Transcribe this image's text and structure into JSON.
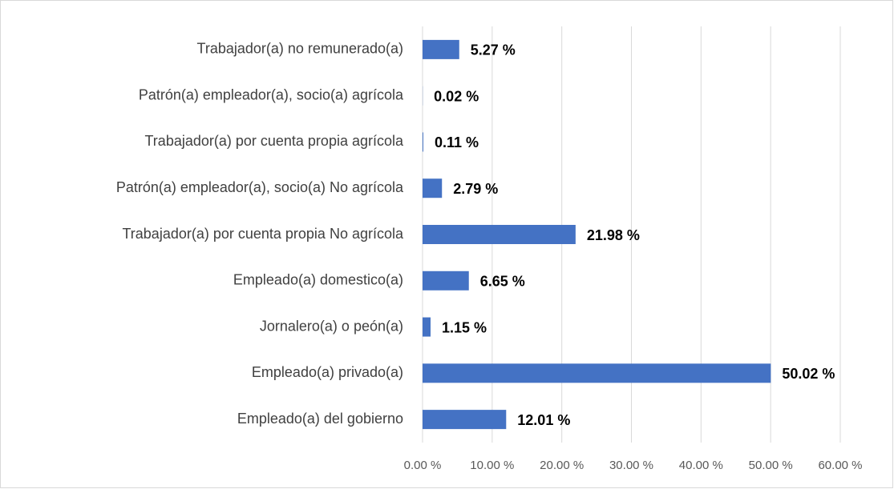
{
  "chart_data": {
    "type": "barh",
    "categories": [
      "Trabajador(a) no remunerado(a)",
      "Patrón(a) empleador(a), socio(a) agrícola",
      "Trabajador(a) por cuenta propia agrícola",
      "Patrón(a) empleador(a), socio(a) No agrícola",
      "Trabajador(a) por cuenta propia No agrícola",
      "Empleado(a) domestico(a)",
      "Jornalero(a) o peón(a)",
      "Empleado(a) privado(a)",
      "Empleado(a) del gobierno"
    ],
    "values": [
      5.27,
      0.02,
      0.11,
      2.79,
      21.98,
      6.65,
      1.15,
      50.02,
      12.01
    ],
    "value_labels": [
      "5.27 %",
      "0.02 %",
      "0.11 %",
      "2.79 %",
      "21.98 %",
      "6.65 %",
      "1.15 %",
      "50.02 %",
      "12.01 %"
    ],
    "color": "#4472c4",
    "xlim": [
      0,
      60
    ],
    "xticks": [
      {
        "value": 0,
        "label": "0.00 %"
      },
      {
        "value": 10,
        "label": "10.00 %"
      },
      {
        "value": 20,
        "label": "20.00 %"
      },
      {
        "value": 30,
        "label": "30.00 %"
      },
      {
        "value": 40,
        "label": "40.00 %"
      },
      {
        "value": 50,
        "label": "50.00 %"
      },
      {
        "value": 60,
        "label": "60.00 %"
      }
    ],
    "grid": true
  }
}
